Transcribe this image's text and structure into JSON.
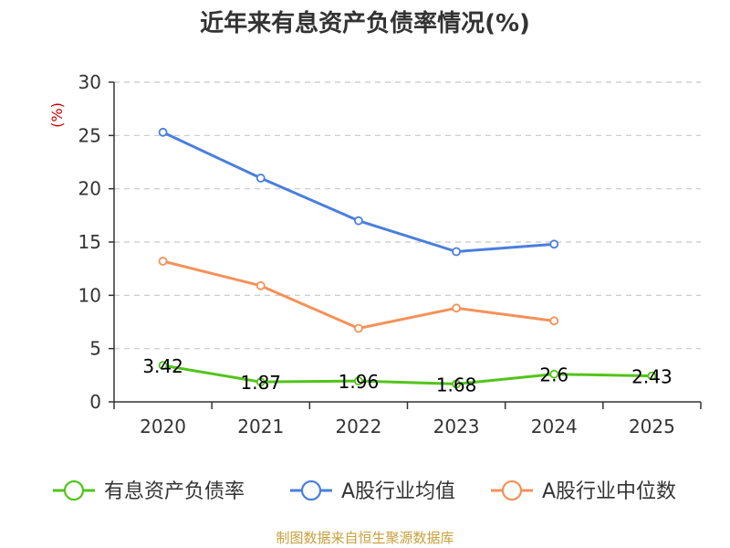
{
  "chart_data": {
    "type": "line",
    "title": "近年来有息资产负债率情况(%)",
    "ylabel": "(%)",
    "categories": [
      "2020",
      "2021",
      "2022",
      "2023",
      "2024",
      "2025"
    ],
    "ylim": [
      0,
      30
    ],
    "yticks": [
      "0",
      "5",
      "10",
      "15",
      "20",
      "25",
      "30"
    ],
    "grid": true,
    "legend_position": "bottom",
    "series": [
      {
        "name": "有息资产负债率",
        "color": "#52c41a",
        "values": [
          3.42,
          1.87,
          1.96,
          1.68,
          2.6,
          2.43
        ],
        "labels": [
          "3.42",
          "1.87",
          "1.96",
          "1.68",
          "2.6",
          "2.43"
        ]
      },
      {
        "name": "A股行业均值",
        "color": "#4a7fdc",
        "values": [
          25.3,
          21.0,
          17.0,
          14.1,
          14.8,
          null
        ]
      },
      {
        "name": "A股行业中位数",
        "color": "#f59158",
        "values": [
          13.2,
          10.9,
          6.9,
          8.8,
          7.6,
          null
        ]
      }
    ]
  },
  "footer": {
    "source": "制图数据来自恒生聚源数据库"
  }
}
